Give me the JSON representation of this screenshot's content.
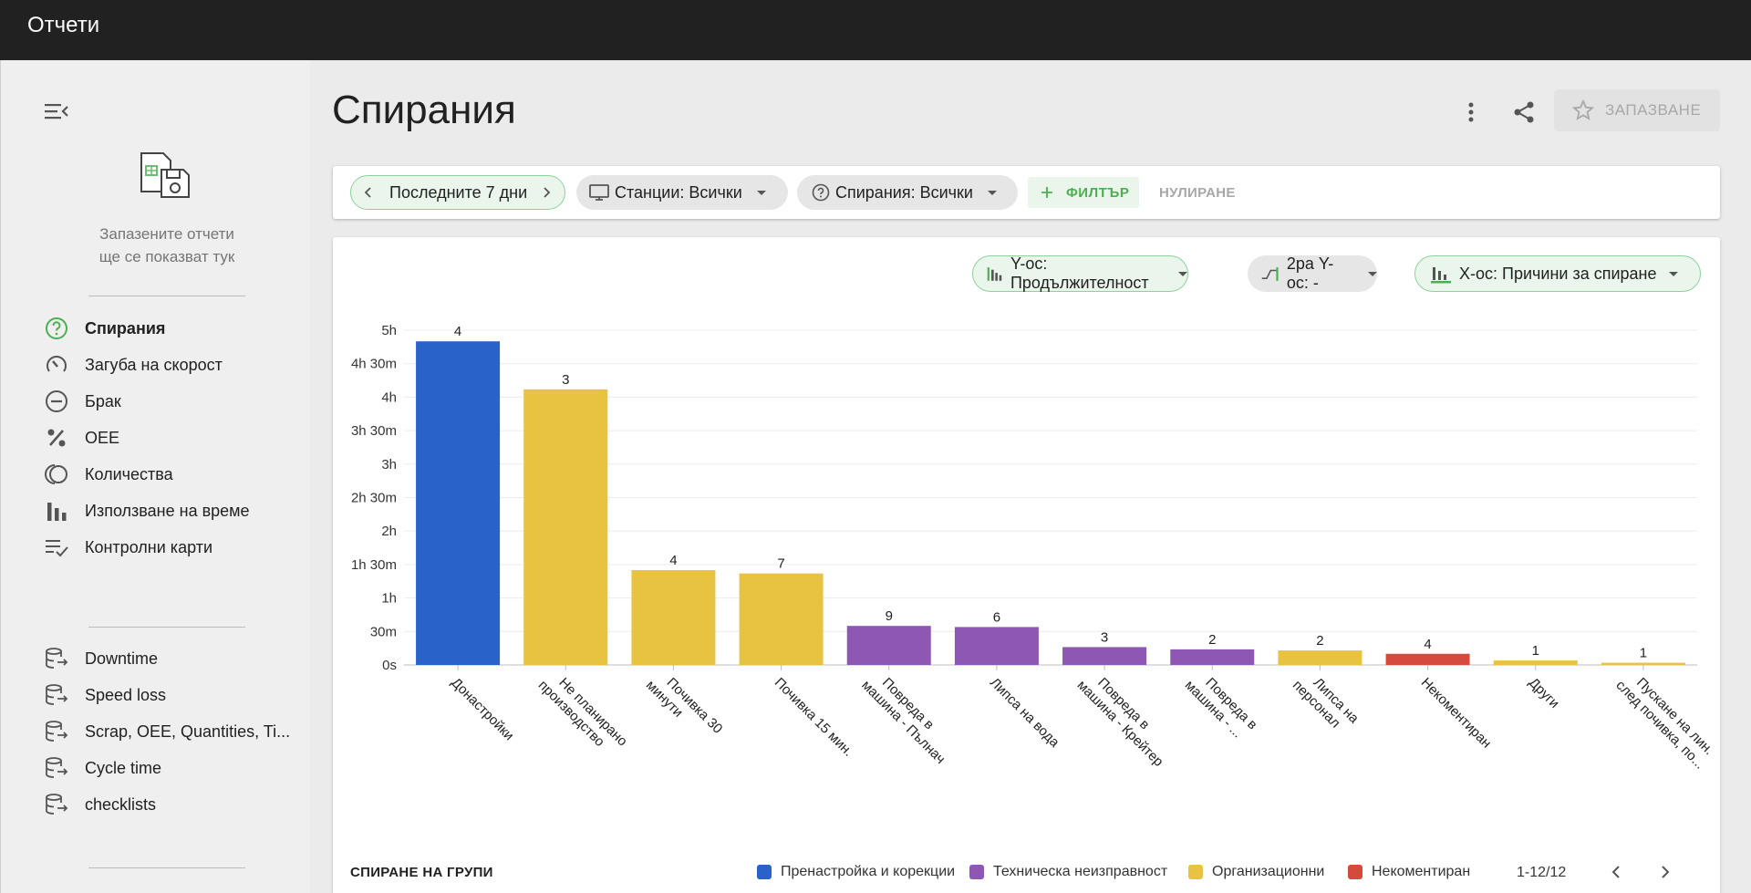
{
  "app": {
    "title": "Отчети"
  },
  "sidebar": {
    "saved_reports_text_line1": "Запазените отчети",
    "saved_reports_text_line2": "ще се показват тук",
    "reports": [
      {
        "label": "Спирания",
        "icon": "question-circle-icon",
        "active": true
      },
      {
        "label": "Загуба на скорост",
        "icon": "speedometer-icon",
        "active": false
      },
      {
        "label": "Брак",
        "icon": "minus-circle-icon",
        "active": false
      },
      {
        "label": "OEE",
        "icon": "percent-icon",
        "active": false
      },
      {
        "label": "Количества",
        "icon": "layered-circles-icon",
        "active": false
      },
      {
        "label": "Използване на време",
        "icon": "bar-chart-icon",
        "active": false
      },
      {
        "label": "Контролни карти",
        "icon": "list-check-icon",
        "active": false
      }
    ],
    "data_sources": [
      {
        "label": "Downtime",
        "icon": "database-arrow-icon"
      },
      {
        "label": "Speed loss",
        "icon": "database-arrow-icon"
      },
      {
        "label": "Scrap, OEE, Quantities, Ti...",
        "icon": "database-arrow-icon"
      },
      {
        "label": "Cycle time",
        "icon": "database-arrow-icon"
      },
      {
        "label": "checklists",
        "icon": "database-arrow-icon"
      }
    ]
  },
  "header": {
    "page_title": "Спирания",
    "save_label": "ЗАПАЗВАНЕ"
  },
  "filters": {
    "period": "Последните 7 дни",
    "stations": "Станции: Всички",
    "stops": "Спирания: Всички",
    "add_filter": "ФИЛТЪР",
    "reset": "НУЛИРАНЕ"
  },
  "axis_selectors": {
    "y_axis": "Y-ос: Продължителност",
    "y2_axis": "2ра Y-ос: -",
    "x_axis": "X-ос: Причини за спиране"
  },
  "colors": {
    "group_setup": "#2962c9",
    "group_technical": "#8e57b3",
    "group_organizational": "#e8c341",
    "group_uncommented": "#d64a3d",
    "accent_green": "#4caf50"
  },
  "chart_data": {
    "type": "bar",
    "title": "",
    "xlabel": "",
    "ylabel": "Продължителност",
    "ylim_minutes": [
      0,
      300
    ],
    "y_ticks": [
      {
        "value": 0,
        "label": "0s"
      },
      {
        "value": 30,
        "label": "30m"
      },
      {
        "value": 60,
        "label": "1h"
      },
      {
        "value": 90,
        "label": "1h 30m"
      },
      {
        "value": 120,
        "label": "2h"
      },
      {
        "value": 150,
        "label": "2h 30m"
      },
      {
        "value": 180,
        "label": "3h"
      },
      {
        "value": 210,
        "label": "3h 30m"
      },
      {
        "value": 240,
        "label": "4h"
      },
      {
        "value": 270,
        "label": "4h 30m"
      },
      {
        "value": 300,
        "label": "5h"
      }
    ],
    "categories": [
      {
        "lines": [
          "Донастройки"
        ],
        "value": 290,
        "count": "4",
        "group": "group_setup"
      },
      {
        "lines": [
          "Не планирано",
          "производство"
        ],
        "value": 247,
        "count": "3",
        "group": "group_organizational"
      },
      {
        "lines": [
          "Почивка 30",
          "минути"
        ],
        "value": 85,
        "count": "4",
        "group": "group_organizational"
      },
      {
        "lines": [
          "Почивка 15 мин."
        ],
        "value": 82,
        "count": "7",
        "group": "group_organizational"
      },
      {
        "lines": [
          "Повреда в",
          "машина - Пълнач"
        ],
        "value": 35,
        "count": "9",
        "group": "group_technical"
      },
      {
        "lines": [
          "Липса на вода"
        ],
        "value": 34,
        "count": "6",
        "group": "group_technical"
      },
      {
        "lines": [
          "Повреда в",
          "машина - Крейтер"
        ],
        "value": 16,
        "count": "3",
        "group": "group_technical"
      },
      {
        "lines": [
          "Повреда в",
          "машина - ..."
        ],
        "value": 14,
        "count": "2",
        "group": "group_technical"
      },
      {
        "lines": [
          "Липса на",
          "персонал"
        ],
        "value": 13,
        "count": "2",
        "group": "group_organizational"
      },
      {
        "lines": [
          "Некоментиран"
        ],
        "value": 10,
        "count": "4",
        "group": "group_uncommented"
      },
      {
        "lines": [
          "Други"
        ],
        "value": 4,
        "count": "1",
        "group": "group_organizational"
      },
      {
        "lines": [
          "Пускане на лин.",
          "след почивка, по..."
        ],
        "value": 2,
        "count": "1",
        "group": "group_organizational"
      }
    ],
    "legend": {
      "title": "СПИРАНЕ НА ГРУПИ",
      "items": [
        {
          "label": "Пренастройка и корекции",
          "group": "group_setup"
        },
        {
          "label": "Техническа неизправност",
          "group": "group_technical"
        },
        {
          "label": "Организационни",
          "group": "group_organizational"
        },
        {
          "label": "Некоментиран",
          "group": "group_uncommented"
        }
      ],
      "pagination": "1-12/12"
    }
  }
}
